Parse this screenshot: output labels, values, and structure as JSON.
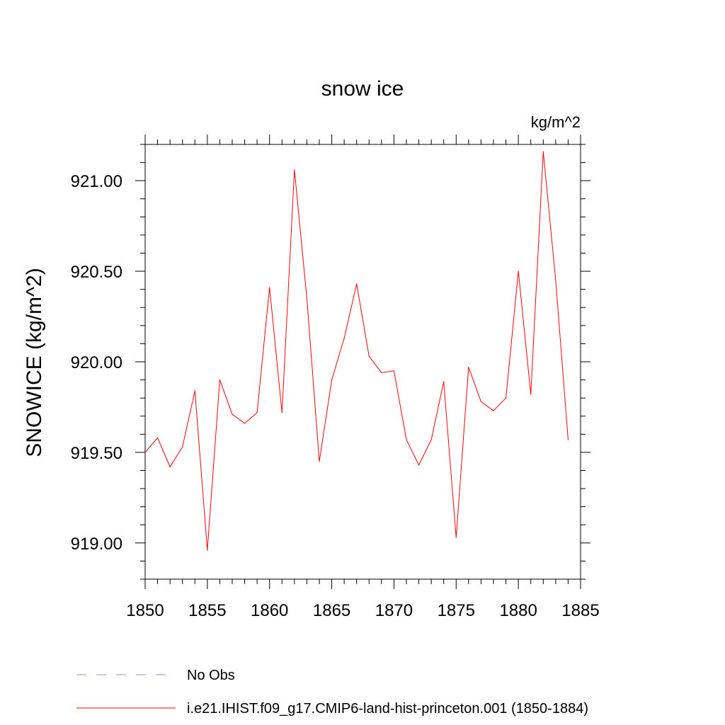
{
  "chart_data": {
    "type": "line",
    "title": "snow ice",
    "units_label": "kg/m^2",
    "ylabel": "SNOWICE  (kg/m^2)",
    "xlabel": "",
    "xlim": [
      1850,
      1885
    ],
    "ylim": [
      918.8,
      921.2
    ],
    "xticks": [
      1850,
      1855,
      1860,
      1865,
      1870,
      1875,
      1880,
      1885
    ],
    "yticks": [
      919.0,
      919.5,
      920.0,
      920.5,
      921.0
    ],
    "ytick_labels": [
      "919.00",
      "919.50",
      "920.00",
      "920.50",
      "921.00"
    ],
    "grid": false,
    "legend_position": "bottom",
    "series": [
      {
        "name": "i.e21.IHIST.f09_g17.CMIP6-land-hist-princeton.001 (1850-1884)",
        "color": "#ff0000",
        "style": "solid",
        "x": [
          1850,
          1851,
          1852,
          1853,
          1854,
          1855,
          1856,
          1857,
          1858,
          1859,
          1860,
          1861,
          1862,
          1863,
          1864,
          1865,
          1866,
          1867,
          1868,
          1869,
          1870,
          1871,
          1872,
          1873,
          1874,
          1875,
          1876,
          1877,
          1878,
          1879,
          1880,
          1881,
          1882,
          1883,
          1884
        ],
        "values": [
          919.5,
          919.58,
          919.42,
          919.53,
          919.84,
          918.96,
          919.9,
          919.71,
          919.66,
          919.72,
          920.41,
          919.72,
          921.06,
          920.35,
          919.45,
          919.9,
          920.13,
          920.43,
          920.03,
          919.94,
          919.95,
          919.57,
          919.43,
          919.57,
          919.89,
          919.03,
          919.97,
          919.78,
          919.73,
          919.8,
          920.5,
          919.82,
          921.16,
          920.45,
          919.57
        ]
      }
    ],
    "legend": [
      {
        "label": "No Obs",
        "color": "#9a90c8",
        "style": "dashed"
      },
      {
        "label": "i.e21.IHIST.f09_g17.CMIP6-land-hist-princeton.001 (1850-1884)",
        "color": "#ff0000",
        "style": "solid"
      }
    ]
  }
}
